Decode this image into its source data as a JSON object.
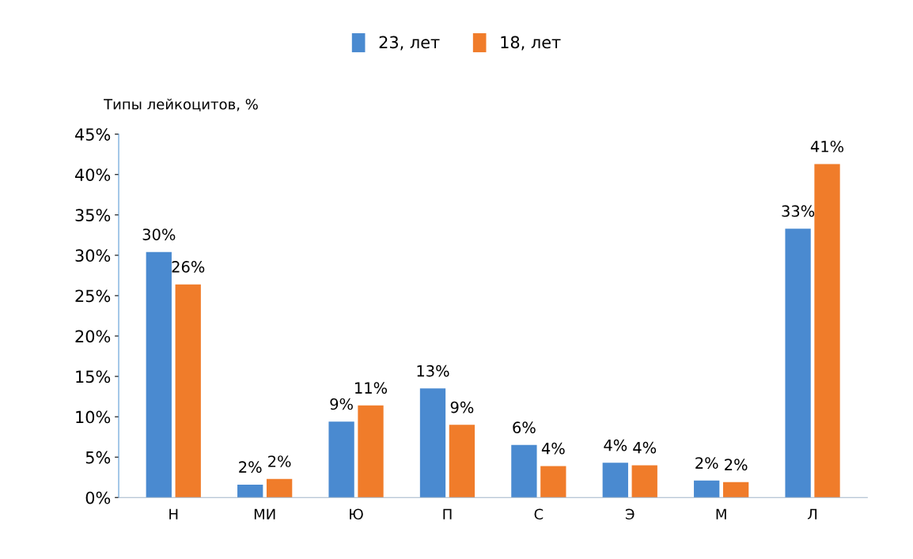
{
  "chart_data": {
    "type": "bar",
    "ylabel": "Типы лейкоцитов, %",
    "categories": [
      "Н",
      "МИ",
      "Ю",
      "П",
      "С",
      "Э",
      "М",
      "Л"
    ],
    "series": [
      {
        "name": "23, лет",
        "color": "#4a8ad0",
        "values": [
          30.4,
          1.6,
          9.4,
          13.5,
          6.5,
          4.3,
          2.1,
          33.3
        ],
        "value_labels": [
          "30%",
          "2%",
          "9%",
          "13%",
          "6%",
          "4%",
          "2%",
          "33%"
        ]
      },
      {
        "name": "18, лет",
        "color": "#f07c2a",
        "values": [
          26.4,
          2.3,
          11.4,
          9,
          3.9,
          4,
          1.9,
          41.3
        ],
        "value_labels": [
          "26%",
          "2%",
          "11%",
          "9%",
          "4%",
          "4%",
          "2%",
          "41%"
        ]
      }
    ],
    "ylim": [
      0,
      45
    ],
    "yticks": [
      {
        "value": 0,
        "label": "0%"
      },
      {
        "value": 5,
        "label": "5%"
      },
      {
        "value": 10,
        "label": "10%"
      },
      {
        "value": 15,
        "label": "15%"
      },
      {
        "value": 20,
        "label": "20%"
      },
      {
        "value": 25,
        "label": "25%"
      },
      {
        "value": 30,
        "label": "30%"
      },
      {
        "value": 35,
        "label": "35%"
      },
      {
        "value": 40,
        "label": "40%"
      },
      {
        "value": 45,
        "label": "45%"
      }
    ],
    "grid": false,
    "legend": "top"
  }
}
